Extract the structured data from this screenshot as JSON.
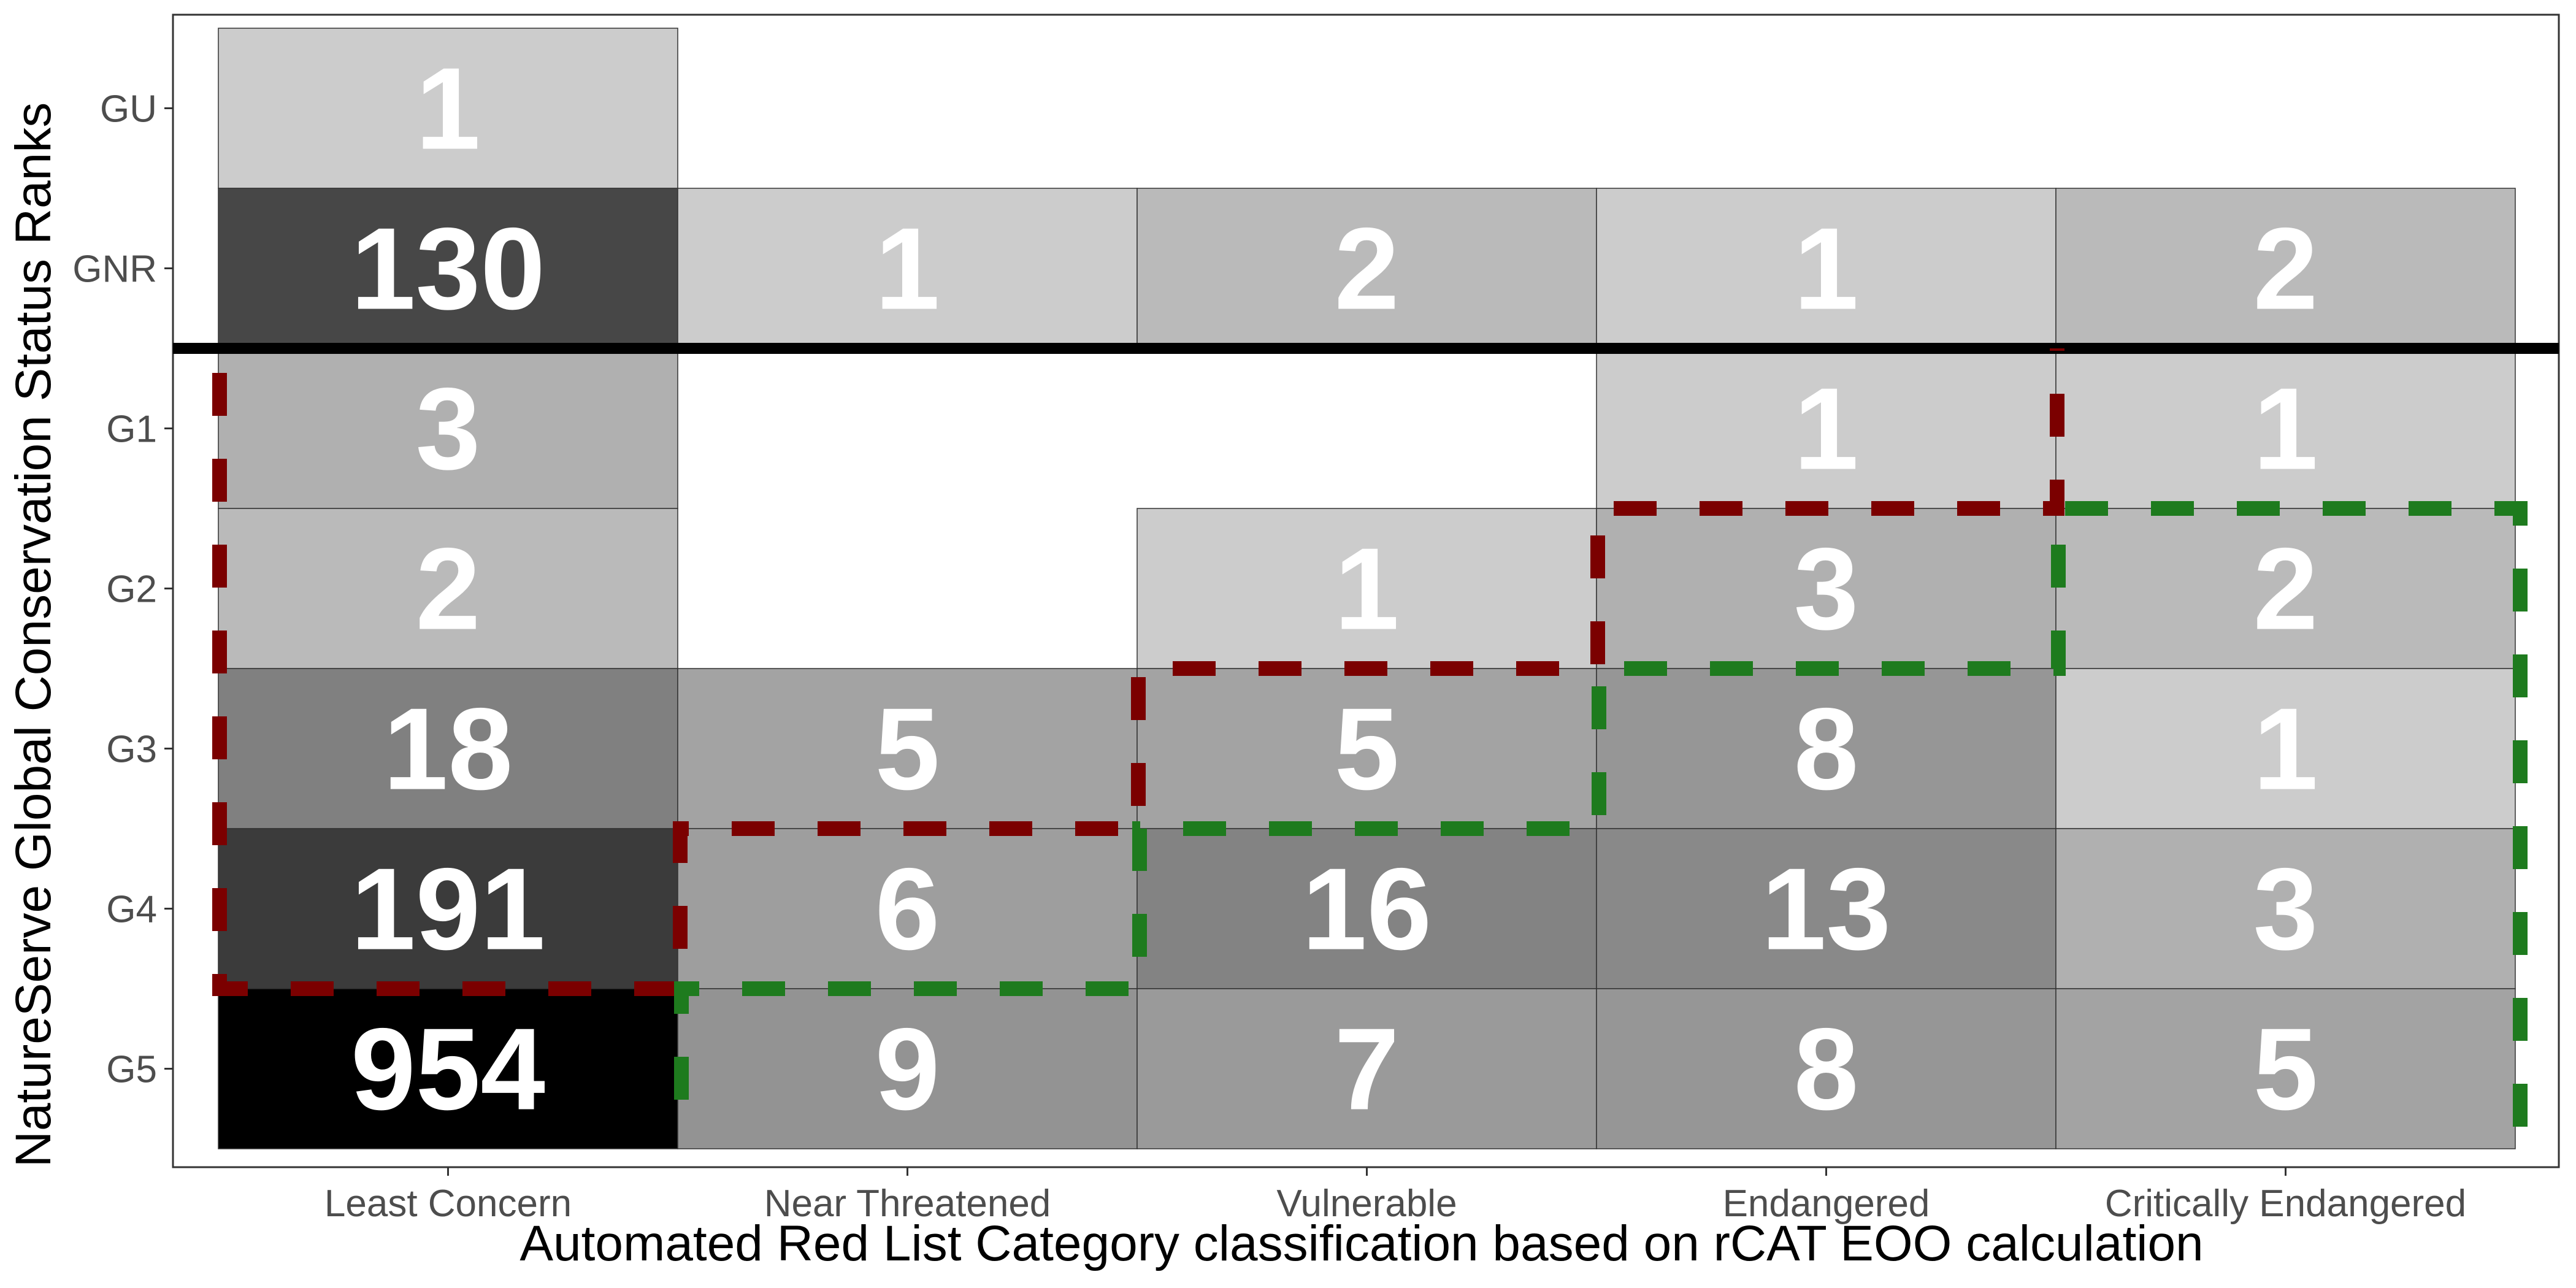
{
  "chart_data": {
    "type": "heatmap",
    "title": "",
    "xlabel": "Automated Red List Category classification based on rCAT EOO calculation",
    "ylabel": "NatureServe Global Conservation Status Ranks",
    "x_categories": [
      "Least Concern",
      "Near Threatened",
      "Vulnerable",
      "Endangered",
      "Critically Endangered"
    ],
    "y_categories": [
      "GU",
      "GNR",
      "G1",
      "G2",
      "G3",
      "G4",
      "G5"
    ],
    "cells": [
      {
        "x": "Least Concern",
        "y": "GU",
        "value": 1
      },
      {
        "x": "Least Concern",
        "y": "GNR",
        "value": 130
      },
      {
        "x": "Near Threatened",
        "y": "GNR",
        "value": 1
      },
      {
        "x": "Vulnerable",
        "y": "GNR",
        "value": 2
      },
      {
        "x": "Endangered",
        "y": "GNR",
        "value": 1
      },
      {
        "x": "Critically Endangered",
        "y": "GNR",
        "value": 2
      },
      {
        "x": "Least Concern",
        "y": "G1",
        "value": 3
      },
      {
        "x": "Endangered",
        "y": "G1",
        "value": 1
      },
      {
        "x": "Critically Endangered",
        "y": "G1",
        "value": 1
      },
      {
        "x": "Least Concern",
        "y": "G2",
        "value": 2
      },
      {
        "x": "Vulnerable",
        "y": "G2",
        "value": 1
      },
      {
        "x": "Endangered",
        "y": "G2",
        "value": 3
      },
      {
        "x": "Critically Endangered",
        "y": "G2",
        "value": 2
      },
      {
        "x": "Least Concern",
        "y": "G3",
        "value": 18
      },
      {
        "x": "Near Threatened",
        "y": "G3",
        "value": 5
      },
      {
        "x": "Vulnerable",
        "y": "G3",
        "value": 5
      },
      {
        "x": "Endangered",
        "y": "G3",
        "value": 8
      },
      {
        "x": "Critically Endangered",
        "y": "G3",
        "value": 1
      },
      {
        "x": "Least Concern",
        "y": "G4",
        "value": 191
      },
      {
        "x": "Near Threatened",
        "y": "G4",
        "value": 6
      },
      {
        "x": "Vulnerable",
        "y": "G4",
        "value": 16
      },
      {
        "x": "Endangered",
        "y": "G4",
        "value": 13
      },
      {
        "x": "Critically Endangered",
        "y": "G4",
        "value": 3
      },
      {
        "x": "Least Concern",
        "y": "G5",
        "value": 954
      },
      {
        "x": "Near Threatened",
        "y": "G5",
        "value": 9
      },
      {
        "x": "Vulnerable",
        "y": "G5",
        "value": 7
      },
      {
        "x": "Endangered",
        "y": "G5",
        "value": 8
      },
      {
        "x": "Critically Endangered",
        "y": "G5",
        "value": 5
      }
    ],
    "color_scale": {
      "type": "log",
      "low": "#cccccc",
      "high": "#000000"
    },
    "reference_line": {
      "between_y": [
        "GNR",
        "G1"
      ],
      "color": "#000000",
      "style": "solid"
    },
    "outline_regions": [
      {
        "color": "#7b0000",
        "style": "dashed",
        "side": "below-left of diagonal agreement"
      },
      {
        "color": "#1e7b1e",
        "style": "dashed",
        "side": "above-right of diagonal agreement"
      }
    ],
    "grid": false,
    "legend": "none"
  }
}
